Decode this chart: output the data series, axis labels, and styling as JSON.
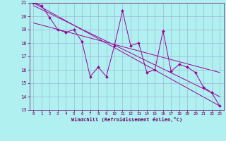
{
  "xlabel": "Windchill (Refroidissement éolien,°C)",
  "bg_color": "#b0f0f0",
  "grid_color": "#9999cc",
  "line_color": "#990099",
  "xlim": [
    -0.5,
    23.5
  ],
  "ylim": [
    13,
    21
  ],
  "xtick_labels": [
    "0",
    "1",
    "2",
    "3",
    "4",
    "5",
    "6",
    "7",
    "8",
    "9",
    "10",
    "11",
    "12",
    "13",
    "14",
    "15",
    "16",
    "17",
    "18",
    "19",
    "20",
    "21",
    "22",
    "23"
  ],
  "xtick_vals": [
    0,
    1,
    2,
    3,
    4,
    5,
    6,
    7,
    8,
    9,
    10,
    11,
    12,
    13,
    14,
    15,
    16,
    17,
    18,
    19,
    20,
    21,
    22,
    23
  ],
  "yticks": [
    13,
    14,
    15,
    16,
    17,
    18,
    19,
    20,
    21
  ],
  "series1_x": [
    0,
    1,
    2,
    3,
    4,
    5,
    6,
    7,
    8,
    9,
    10,
    11,
    12,
    13,
    14,
    15,
    16,
    17,
    18,
    19,
    20,
    21,
    22,
    23
  ],
  "series1_y": [
    21.0,
    20.8,
    19.9,
    19.0,
    18.8,
    19.0,
    18.1,
    15.5,
    16.2,
    15.5,
    17.8,
    20.4,
    17.8,
    18.0,
    15.8,
    16.0,
    18.9,
    15.9,
    16.4,
    16.2,
    15.8,
    14.7,
    14.3,
    13.3
  ],
  "series2_x": [
    0,
    23
  ],
  "series2_y": [
    21.0,
    13.3
  ],
  "series3_x": [
    0,
    23
  ],
  "series3_y": [
    20.8,
    14.0
  ],
  "series4_x": [
    0,
    23
  ],
  "series4_y": [
    19.5,
    15.8
  ]
}
